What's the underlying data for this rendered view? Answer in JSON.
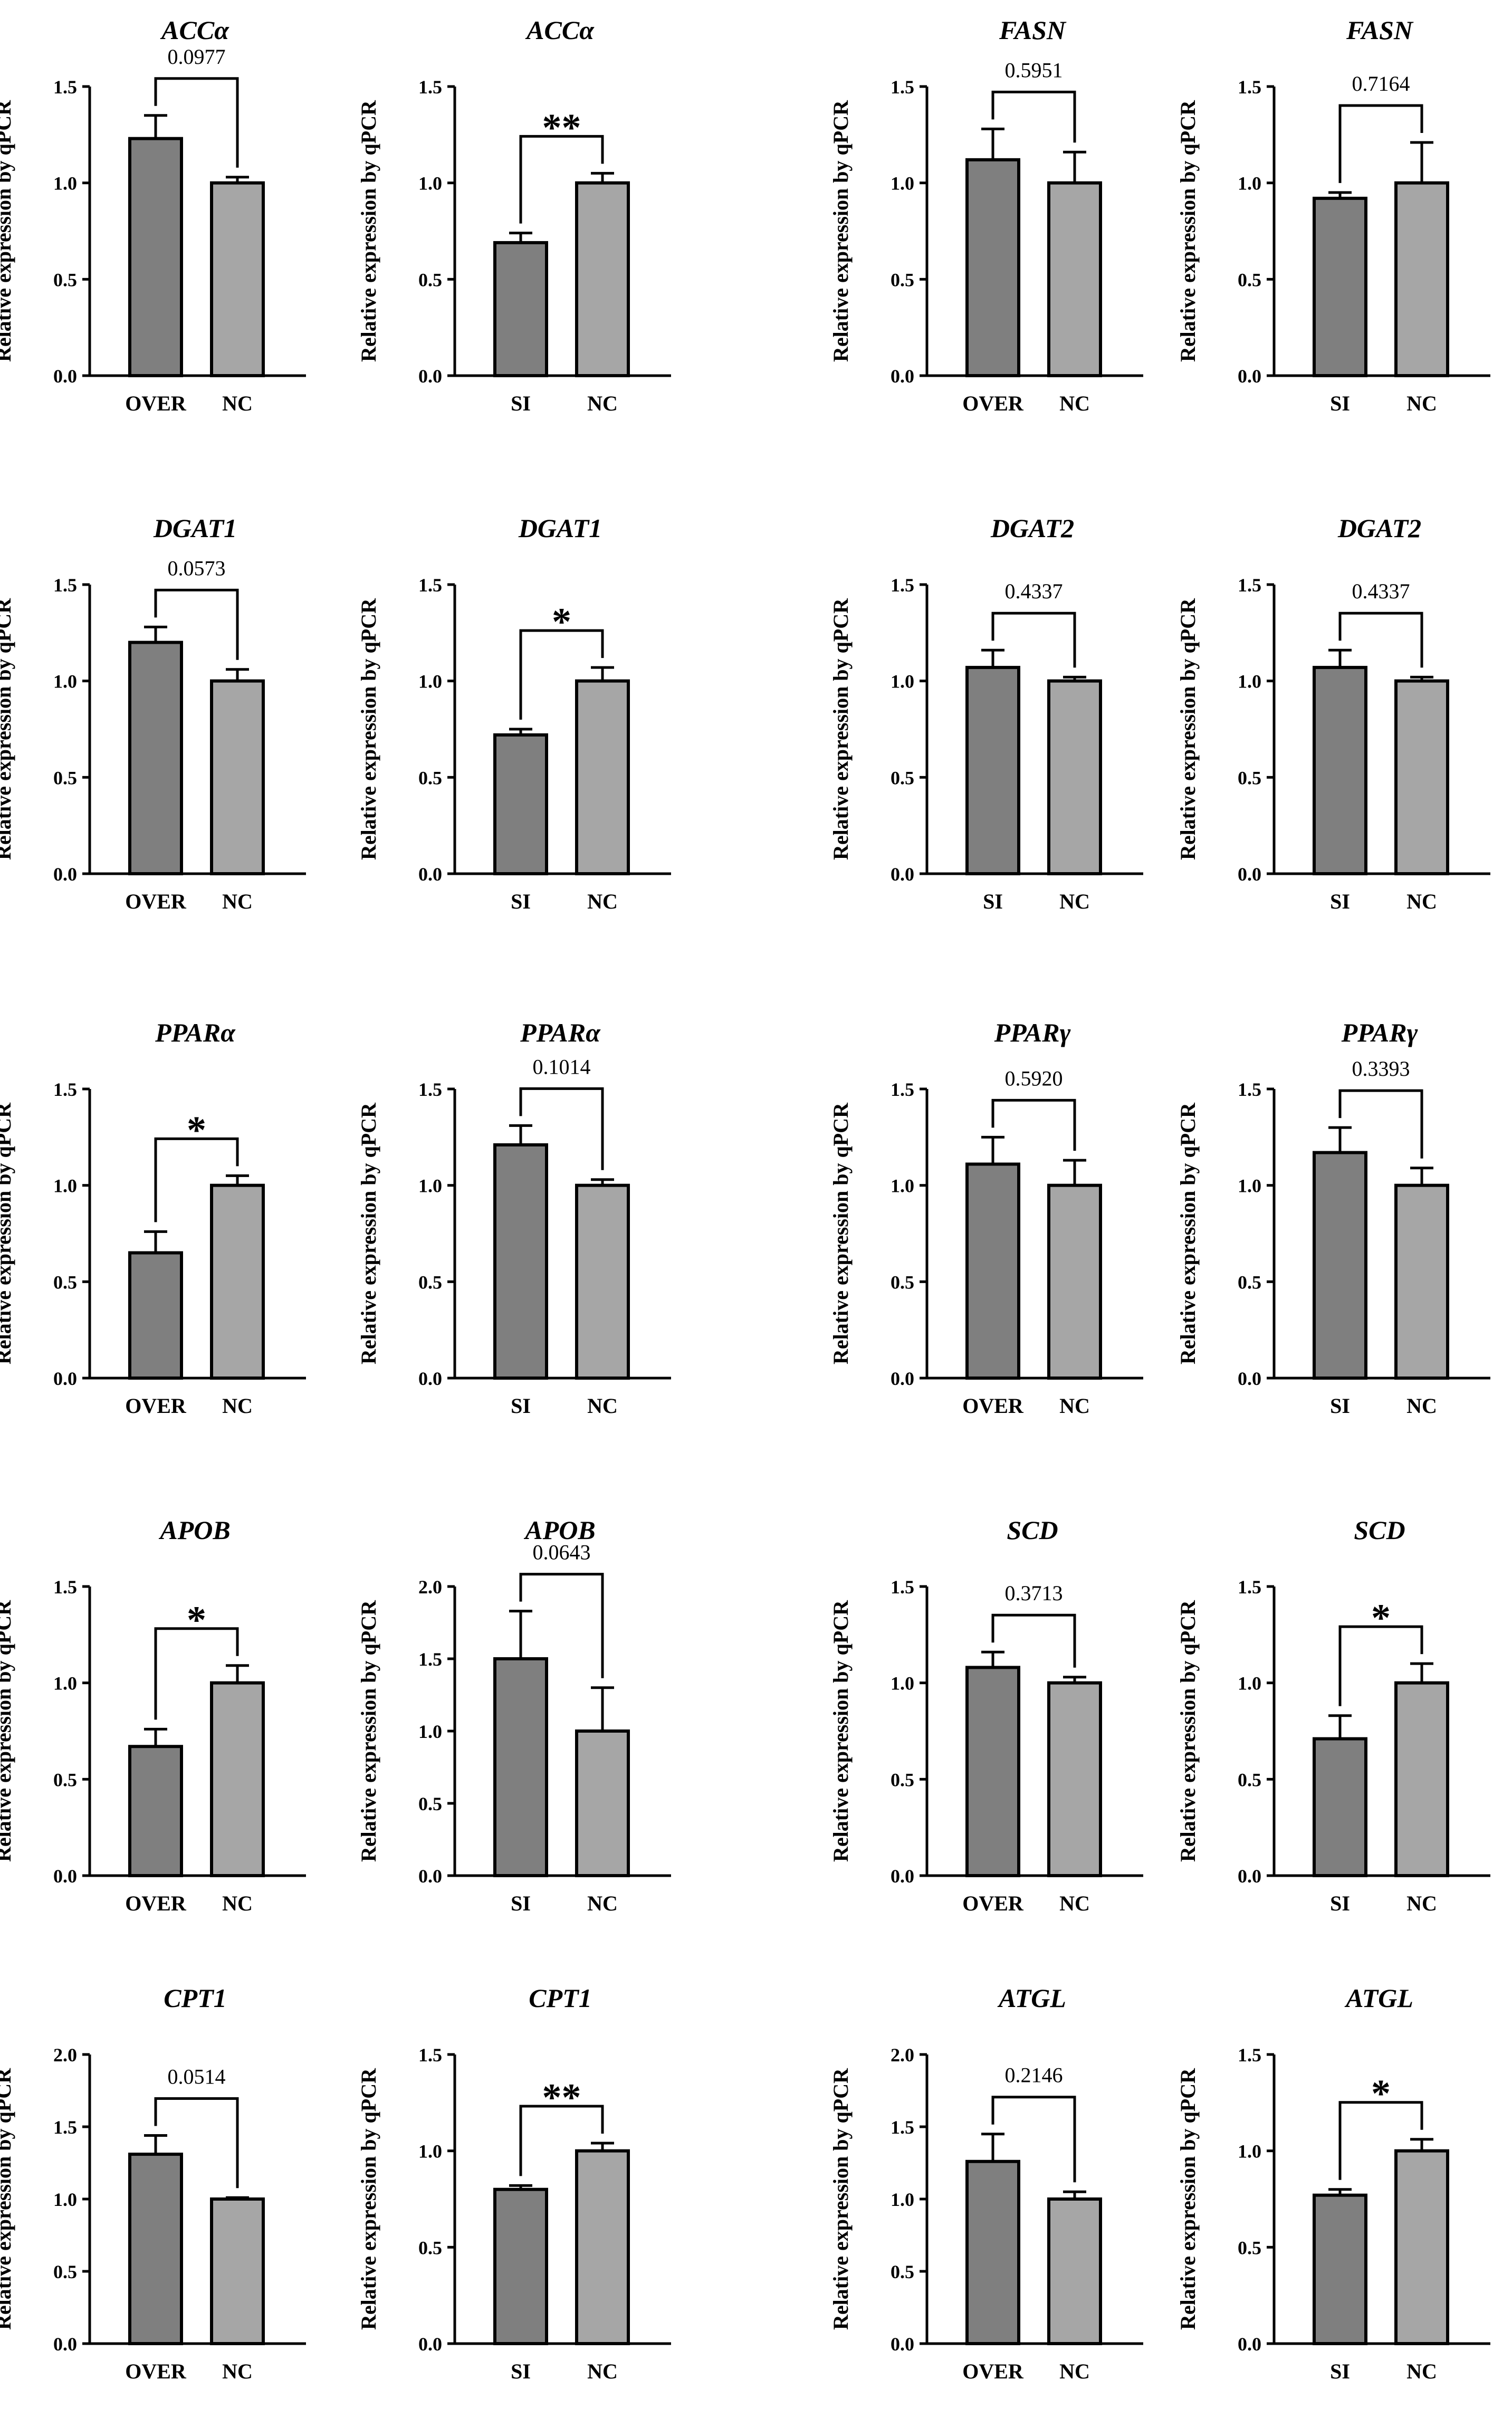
{
  "colors": {
    "dark_bar": "#7f7f7f",
    "light_bar": "#a6a6a6",
    "ink": "#000000"
  },
  "chart_data": [
    {
      "type": "bar",
      "title": "ACCα",
      "ylabel": "Relative expression by qPCR",
      "ylim": [
        0,
        1.5
      ],
      "yticks": [
        "0.0",
        "0.5",
        "1.0",
        "1.5"
      ],
      "categories": [
        "OVER",
        "NC"
      ],
      "values": [
        1.23,
        1.0
      ],
      "errors": [
        0.12,
        0.03
      ],
      "annotation": "0.0977"
    },
    {
      "type": "bar",
      "title": "ACCα",
      "ylabel": "Relative expression by qPCR",
      "ylim": [
        0,
        1.5
      ],
      "yticks": [
        "0.0",
        "0.5",
        "1.0",
        "1.5"
      ],
      "categories": [
        "SI",
        "NC"
      ],
      "values": [
        0.69,
        1.0
      ],
      "errors": [
        0.05,
        0.05
      ],
      "annotation": "**"
    },
    {
      "type": "bar",
      "title": "FASN",
      "ylabel": "Relative expression by qPCR",
      "ylim": [
        0,
        1.5
      ],
      "yticks": [
        "0.0",
        "0.5",
        "1.0",
        "1.5"
      ],
      "categories": [
        "OVER",
        "NC"
      ],
      "values": [
        1.12,
        1.0
      ],
      "errors": [
        0.16,
        0.16
      ],
      "annotation": "0.5951"
    },
    {
      "type": "bar",
      "title": "FASN",
      "ylabel": "Relative expression by qPCR",
      "ylim": [
        0,
        1.5
      ],
      "yticks": [
        "0.0",
        "0.5",
        "1.0",
        "1.5"
      ],
      "categories": [
        "SI",
        "NC"
      ],
      "values": [
        0.92,
        1.0
      ],
      "errors": [
        0.03,
        0.21
      ],
      "annotation": "0.7164"
    },
    {
      "type": "bar",
      "title": "DGAT1",
      "ylabel": "Relative expression by qPCR",
      "ylim": [
        0,
        1.5
      ],
      "yticks": [
        "0.0",
        "0.5",
        "1.0",
        "1.5"
      ],
      "categories": [
        "OVER",
        "NC"
      ],
      "values": [
        1.2,
        1.0
      ],
      "errors": [
        0.08,
        0.06
      ],
      "annotation": "0.0573"
    },
    {
      "type": "bar",
      "title": "DGAT1",
      "ylabel": "Relative expression by qPCR",
      "ylim": [
        0,
        1.5
      ],
      "yticks": [
        "0.0",
        "0.5",
        "1.0",
        "1.5"
      ],
      "categories": [
        "SI",
        "NC"
      ],
      "values": [
        0.72,
        1.0
      ],
      "errors": [
        0.03,
        0.07
      ],
      "annotation": "*"
    },
    {
      "type": "bar",
      "title": "DGAT2",
      "ylabel": "Relative expression by qPCR",
      "ylim": [
        0,
        1.5
      ],
      "yticks": [
        "0.0",
        "0.5",
        "1.0",
        "1.5"
      ],
      "categories": [
        "SI",
        "NC"
      ],
      "values": [
        1.07,
        1.0
      ],
      "errors": [
        0.09,
        0.02
      ],
      "annotation": "0.4337"
    },
    {
      "type": "bar",
      "title": "DGAT2",
      "ylabel": "Relative expression by qPCR",
      "ylim": [
        0,
        1.5
      ],
      "yticks": [
        "0.0",
        "0.5",
        "1.0",
        "1.5"
      ],
      "categories": [
        "SI",
        "NC"
      ],
      "values": [
        1.07,
        1.0
      ],
      "errors": [
        0.09,
        0.02
      ],
      "annotation": "0.4337"
    },
    {
      "type": "bar",
      "title": "PPARα",
      "ylabel": "Relative expression by qPCR",
      "ylim": [
        0,
        1.5
      ],
      "yticks": [
        "0.0",
        "0.5",
        "1.0",
        "1.5"
      ],
      "categories": [
        "OVER",
        "NC"
      ],
      "values": [
        0.65,
        1.0
      ],
      "errors": [
        0.11,
        0.05
      ],
      "annotation": "*"
    },
    {
      "type": "bar",
      "title": "PPARα",
      "ylabel": "Relative expression by qPCR",
      "ylim": [
        0,
        1.5
      ],
      "yticks": [
        "0.0",
        "0.5",
        "1.0",
        "1.5"
      ],
      "categories": [
        "SI",
        "NC"
      ],
      "values": [
        1.21,
        1.0
      ],
      "errors": [
        0.1,
        0.03
      ],
      "annotation": "0.1014"
    },
    {
      "type": "bar",
      "title": "PPARγ",
      "ylabel": "Relative expression by qPCR",
      "ylim": [
        0,
        1.5
      ],
      "yticks": [
        "0.0",
        "0.5",
        "1.0",
        "1.5"
      ],
      "categories": [
        "OVER",
        "NC"
      ],
      "values": [
        1.11,
        1.0
      ],
      "errors": [
        0.14,
        0.13
      ],
      "annotation": "0.5920"
    },
    {
      "type": "bar",
      "title": "PPARγ",
      "ylabel": "Relative expression by qPCR",
      "ylim": [
        0,
        1.5
      ],
      "yticks": [
        "0.0",
        "0.5",
        "1.0",
        "1.5"
      ],
      "categories": [
        "SI",
        "NC"
      ],
      "values": [
        1.17,
        1.0
      ],
      "errors": [
        0.13,
        0.09
      ],
      "annotation": "0.3393"
    },
    {
      "type": "bar",
      "title": "APOB",
      "ylabel": "Relative expression by qPCR",
      "ylim": [
        0,
        1.5
      ],
      "yticks": [
        "0.0",
        "0.5",
        "1.0",
        "1.5"
      ],
      "categories": [
        "OVER",
        "NC"
      ],
      "values": [
        0.67,
        1.0
      ],
      "errors": [
        0.09,
        0.09
      ],
      "annotation": "*"
    },
    {
      "type": "bar",
      "title": "APOB",
      "ylabel": "Relative expression by qPCR",
      "ylim": [
        0,
        2.0
      ],
      "yticks": [
        "0.0",
        "0.5",
        "1.0",
        "1.5",
        "2.0"
      ],
      "categories": [
        "SI",
        "NC"
      ],
      "values": [
        1.5,
        1.0
      ],
      "errors": [
        0.33,
        0.3
      ],
      "annotation": "0.0643"
    },
    {
      "type": "bar",
      "title": "SCD",
      "ylabel": "Relative expression by qPCR",
      "ylim": [
        0,
        1.5
      ],
      "yticks": [
        "0.0",
        "0.5",
        "1.0",
        "1.5"
      ],
      "categories": [
        "OVER",
        "NC"
      ],
      "values": [
        1.08,
        1.0
      ],
      "errors": [
        0.08,
        0.03
      ],
      "annotation": "0.3713"
    },
    {
      "type": "bar",
      "title": "SCD",
      "ylabel": "Relative expression by qPCR",
      "ylim": [
        0,
        1.5
      ],
      "yticks": [
        "0.0",
        "0.5",
        "1.0",
        "1.5"
      ],
      "categories": [
        "SI",
        "NC"
      ],
      "values": [
        0.71,
        1.0
      ],
      "errors": [
        0.12,
        0.1
      ],
      "annotation": "*"
    },
    {
      "type": "bar",
      "title": "CPT1",
      "ylabel": "Relative expression by qPCR",
      "ylim": [
        0,
        2.0
      ],
      "yticks": [
        "0.0",
        "0.5",
        "1.0",
        "1.5",
        "2.0"
      ],
      "categories": [
        "OVER",
        "NC"
      ],
      "values": [
        1.31,
        1.0
      ],
      "errors": [
        0.13,
        0.01
      ],
      "annotation": "0.0514"
    },
    {
      "type": "bar",
      "title": "CPT1",
      "ylabel": "Relative expression by qPCR",
      "ylim": [
        0,
        1.5
      ],
      "yticks": [
        "0.0",
        "0.5",
        "1.0",
        "1.5"
      ],
      "categories": [
        "SI",
        "NC"
      ],
      "values": [
        0.8,
        1.0
      ],
      "errors": [
        0.02,
        0.04
      ],
      "annotation": "**"
    },
    {
      "type": "bar",
      "title": "ATGL",
      "ylabel": "Relative expression by qPCR",
      "ylim": [
        0,
        2.0
      ],
      "yticks": [
        "0.0",
        "0.5",
        "1.0",
        "1.5",
        "2.0"
      ],
      "categories": [
        "OVER",
        "NC"
      ],
      "values": [
        1.26,
        1.0
      ],
      "errors": [
        0.19,
        0.05
      ],
      "annotation": "0.2146"
    },
    {
      "type": "bar",
      "title": "ATGL",
      "ylabel": "Relative expression by qPCR",
      "ylim": [
        0,
        1.5
      ],
      "yticks": [
        "0.0",
        "0.5",
        "1.0",
        "1.5"
      ],
      "categories": [
        "SI",
        "NC"
      ],
      "values": [
        0.77,
        1.0
      ],
      "errors": [
        0.03,
        0.06
      ],
      "annotation": "*"
    }
  ]
}
